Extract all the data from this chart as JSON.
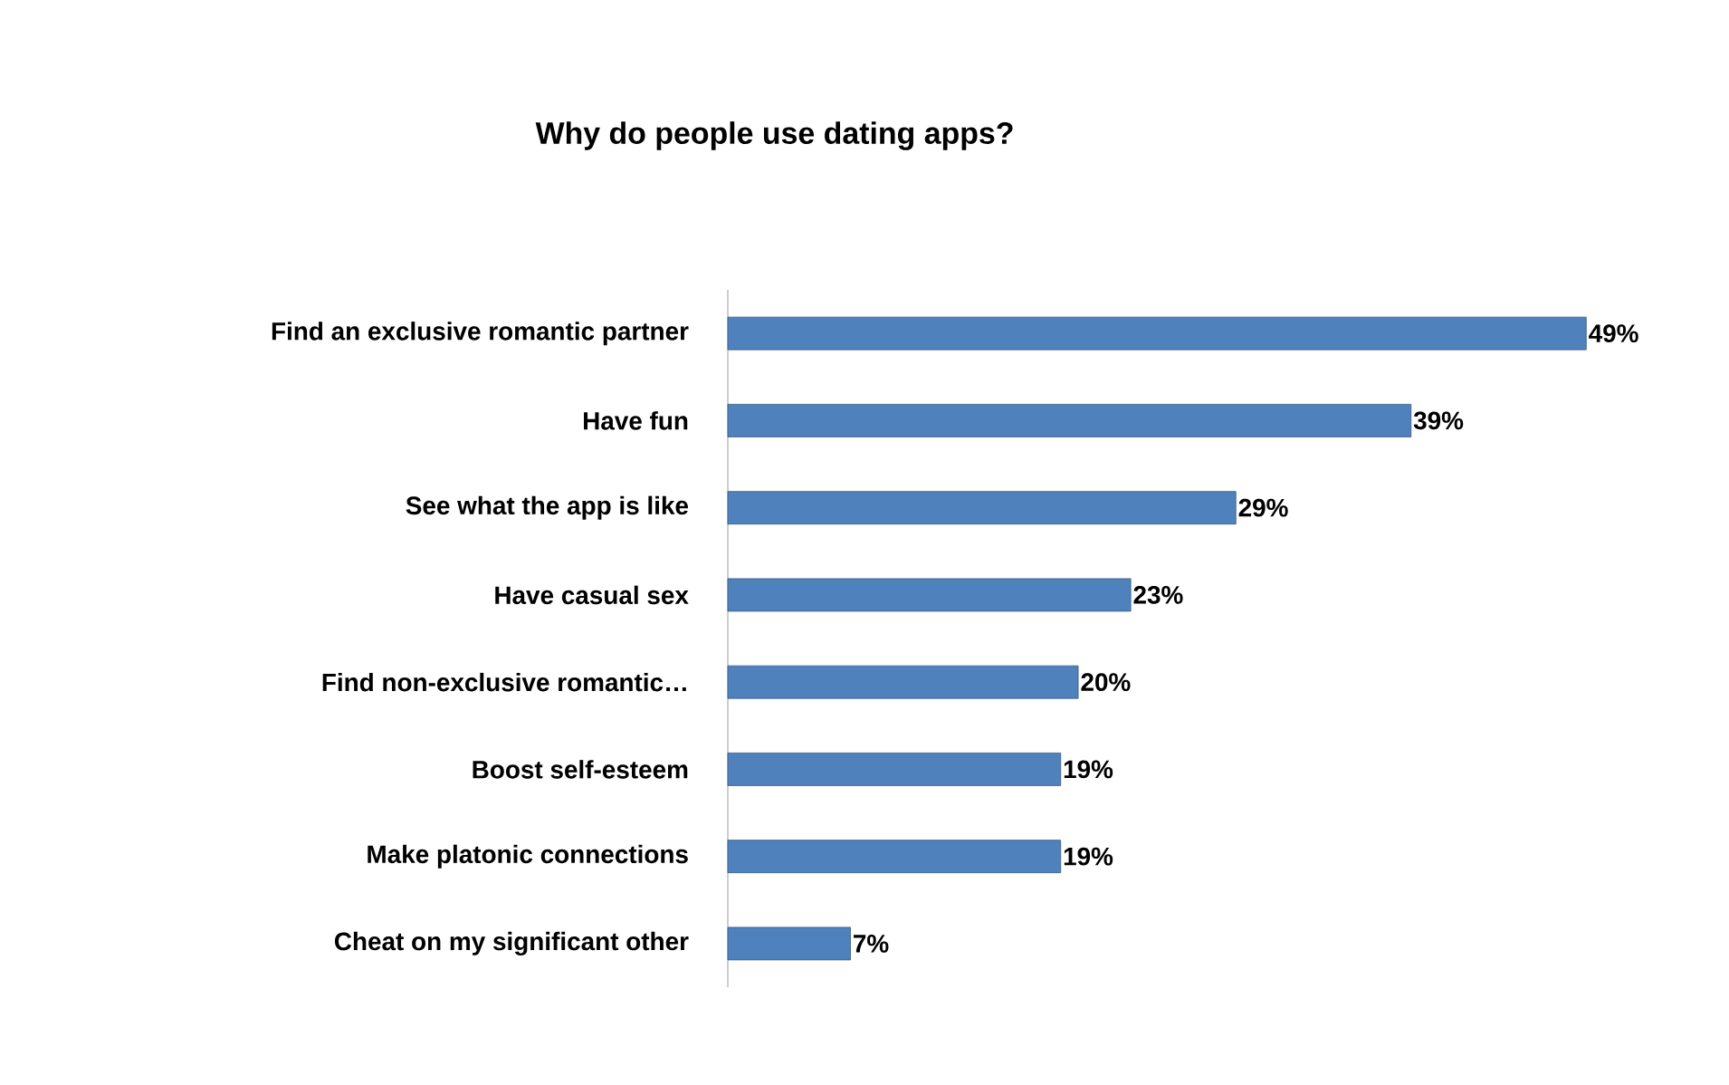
{
  "chart_data": {
    "type": "bar",
    "orientation": "horizontal",
    "title": "Why do people use dating apps?",
    "categories": [
      "Find an exclusive romantic partner",
      "Have fun",
      "See what the app is like",
      "Have casual sex",
      "Find non-exclusive romantic…",
      "Boost self-esteem",
      "Make platonic connections",
      "Cheat on my significant other"
    ],
    "values": [
      49,
      39,
      29,
      23,
      20,
      19,
      19,
      7
    ],
    "value_labels": [
      "49%",
      "39%",
      "29%",
      "23%",
      "20%",
      "19%",
      "19%",
      "7%"
    ],
    "color": "#4f81bd",
    "tick_labels": "y"
  }
}
